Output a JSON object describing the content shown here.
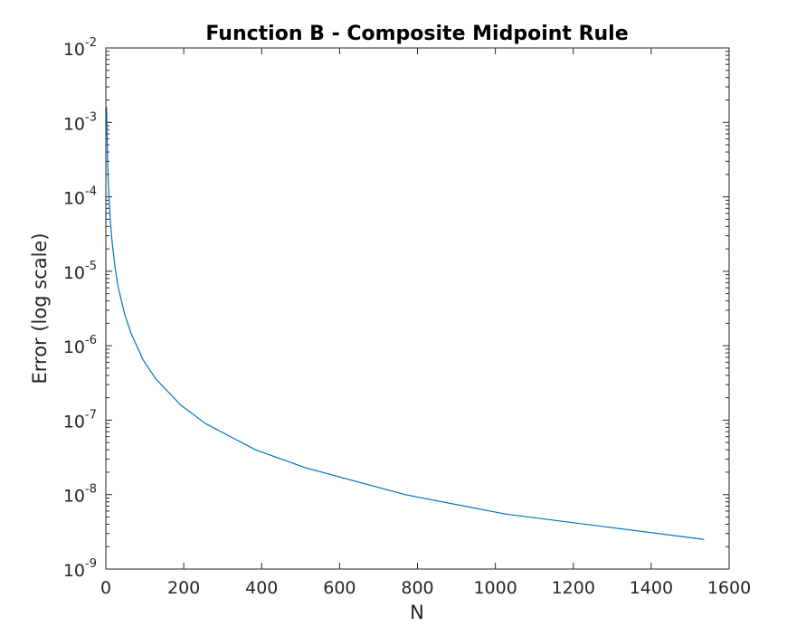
{
  "chart_data": {
    "type": "line",
    "title": "Function B - Composite Midpoint Rule",
    "xlabel": "N",
    "ylabel": "Error (log scale)",
    "xlim": [
      0,
      1600
    ],
    "ylim": [
      1e-09,
      0.01
    ],
    "yscale": "log",
    "grid": false,
    "x_ticks": [
      0,
      200,
      400,
      600,
      800,
      1000,
      1200,
      1400,
      1600
    ],
    "x_tick_labels": [
      "0",
      "200",
      "400",
      "600",
      "800",
      "1000",
      "1200",
      "1400",
      "1600"
    ],
    "y_ticks": [
      {
        "value": 1e-09,
        "base": "10",
        "exp": "-9"
      },
      {
        "value": 1e-08,
        "base": "10",
        "exp": "-8"
      },
      {
        "value": 1e-07,
        "base": "10",
        "exp": "-7"
      },
      {
        "value": 1e-06,
        "base": "10",
        "exp": "-6"
      },
      {
        "value": 1e-05,
        "base": "10",
        "exp": "-5"
      },
      {
        "value": 0.0001,
        "base": "10",
        "exp": "-4"
      },
      {
        "value": 0.001,
        "base": "10",
        "exp": "-3"
      },
      {
        "value": 0.01,
        "base": "10",
        "exp": "-2"
      }
    ],
    "series": [
      {
        "color": "#0072bd",
        "x": [
          2,
          4,
          6,
          8,
          12,
          16,
          24,
          32,
          48,
          64,
          96,
          128,
          192,
          256,
          384,
          512,
          768,
          1024,
          1536
        ],
        "y": [
          0.0016,
          0.0004,
          0.00018,
          0.0001,
          4.5e-05,
          2.5e-05,
          1.1e-05,
          6e-06,
          2.7e-06,
          1.5e-06,
          6.4e-07,
          3.6e-07,
          1.6e-07,
          9e-08,
          4e-08,
          2.3e-08,
          1e-08,
          5.5e-09,
          2.5e-09
        ]
      }
    ]
  }
}
